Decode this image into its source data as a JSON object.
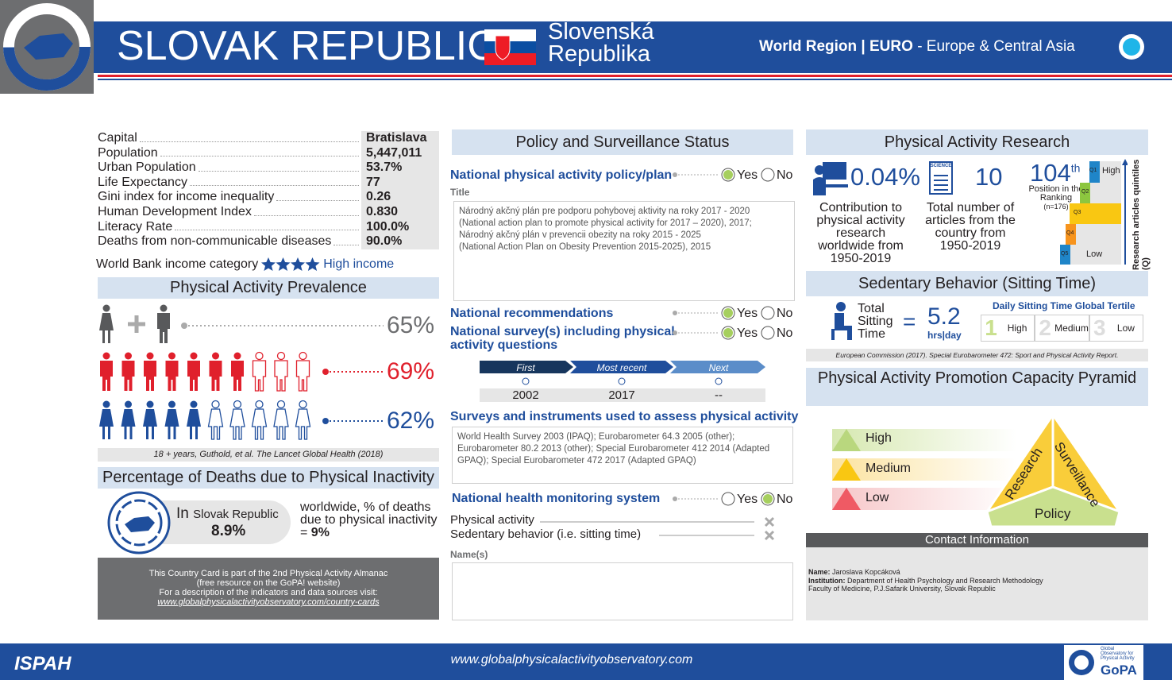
{
  "header": {
    "title": "SLOVAK REPUBLIC",
    "local_name_1": "Slovenská",
    "local_name_2": "Republika",
    "region": "World Region | EURO",
    "region_name": "- Europe & Central Asia"
  },
  "country_facts": {
    "rows": [
      [
        "Capital",
        "Bratislava"
      ],
      [
        "Population",
        "5,447,011"
      ],
      [
        "Urban Population",
        "53.7%"
      ],
      [
        "Life Expectancy",
        "77"
      ],
      [
        "Gini index for income inequality",
        "0.26"
      ],
      [
        "Human Development Index",
        "0.830"
      ],
      [
        "Literacy Rate",
        "100.0%"
      ],
      [
        "Deaths from non-communicable diseases",
        "90.0%"
      ]
    ],
    "income_label": "World Bank income category",
    "income_value": "High income"
  },
  "prevalence": {
    "title": "Physical Activity Prevalence",
    "values": [
      "65%",
      "69%",
      "62%"
    ],
    "note": "18 + years, Guthold, et al. The Lancet Global Health (2018)"
  },
  "deaths": {
    "title": "Percentage of Deaths due to Physical Inactivity",
    "in": "In",
    "country": "Slovak Republic",
    "value": "8.9%",
    "worldwide": "worldwide, % of deaths due to physical inactivity =",
    "worldwide_value": "9%"
  },
  "almanac_note": {
    "lines": [
      "This Country Card is part of the 2nd Physical Activity Almanac",
      "(free resource on the GoPA! website)",
      "For a description of the indicators and data sources visit:"
    ],
    "link": "www.globalphysicalactivityobservatory.com/country-cards"
  },
  "policy": {
    "title": "Policy and Surveillance Status",
    "yes": "Yes",
    "no": "No",
    "policy_label": "National physical activity policy/plan",
    "title_label": "Title",
    "policy_text": [
      "Národný akčný plán pre podporu pohybovej aktivity na roky 2017 - 2020",
      "(National action plan to promote physical activity for 2017 – 2020), 2017;",
      "Národný akčný plán v prevencii obezity na roky 2015 - 2025",
      "(National Action Plan on Obesity Prevention 2015-2025), 2015"
    ],
    "recommendations": "National recommendations",
    "survey": "National survey(s) including physical activity questions",
    "timeline": {
      "headers": [
        "First",
        "Most recent",
        "Next"
      ],
      "values": [
        "2002",
        "2017",
        "--"
      ]
    },
    "instruments_title": "Surveys and instruments used to assess physical activity",
    "instruments_text": "World Health Survey 2003 (IPAQ); Eurobarometer 64.3 2005 (other); Eurobarometer 80.2 2013 (other); Special Eurobarometer 412  2014 (Adapted GPAQ); Special Eurobarometer 472 2017 (Adapted GPAQ)",
    "monitoring": "National health monitoring system",
    "monitoring_items": [
      "Physical activity",
      "Sedentary behavior (i.e. sitting time)"
    ],
    "names_label": "Name(s)"
  },
  "research": {
    "title": "Physical Activity Research",
    "contribution": "0.04%",
    "contribution_label": "Contribution to physical activity research worldwide from 1950-2019",
    "science": "SCIENCE",
    "articles": "10",
    "articles_label": "Total number of articles from the country from 1950-2019",
    "rank": "104",
    "rank_suffix": "th",
    "rank_label": "Position in the Ranking",
    "rank_n": "(n=176)",
    "quintiles": [
      "Q1",
      "Q2",
      "Q3",
      "Q4",
      "Q5"
    ],
    "high": "High",
    "low": "Low",
    "axis_label": "Research articles quintiles (Q)"
  },
  "sedentary": {
    "title": "Sedentary Behavior (Sitting Time)",
    "label": "Total Sitting Time",
    "eq": "=",
    "value": "5.2",
    "unit": "hrs|day",
    "tertile_title": "Daily Sitting Time Global Tertile",
    "tertiles": [
      [
        "1",
        "High"
      ],
      [
        "2",
        "Medium"
      ],
      [
        "3",
        "Low"
      ]
    ],
    "source": "European Commission (2017). Special Eurobarometer 472: Sport and Physical Activity Report."
  },
  "pyramid": {
    "title": "Physical Activity Promotion Capacity Pyramid",
    "levels": [
      "High",
      "Medium",
      "Low"
    ],
    "sides": [
      "Research",
      "Surveillance",
      "Policy"
    ]
  },
  "contact": {
    "title": "Contact Information",
    "name_label": "Name:",
    "name": "Jaroslava Kopcáková",
    "institution_label": "Institution:",
    "institution": "Department of Health Psychology and Research Methodology",
    "institution_2": "Faculty of Medicine, P.J.Safarik University, Slovak Republic"
  },
  "footer": {
    "ispah": "ISPAH",
    "url": "www.globalphysicalactivityobservatory.com",
    "gopa_lines": [
      "Global",
      "Observatory for",
      "Physical Activity"
    ],
    "gopa": "GoPA"
  }
}
